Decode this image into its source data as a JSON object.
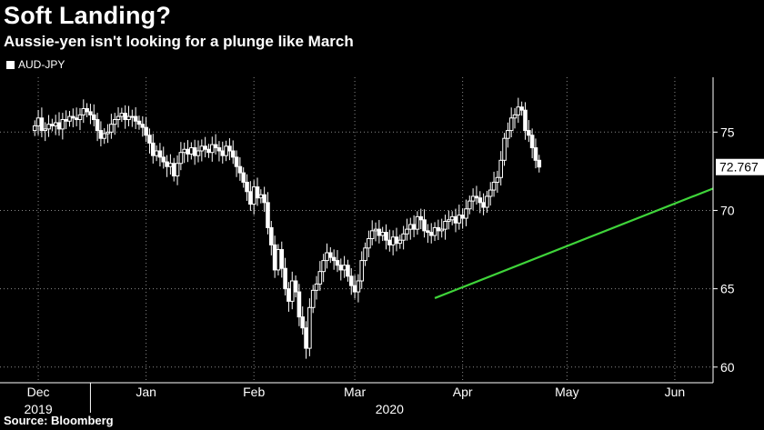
{
  "title": "Soft Landing?",
  "subtitle": "Aussie-yen isn't looking for a plunge like March",
  "source": "Source: Bloomberg",
  "chart_data": {
    "type": "candlestick",
    "title": "Soft Landing?",
    "subtitle": "Aussie-yen isn't looking for a plunge like March",
    "legend": [
      {
        "name": "AUD-JPY",
        "color": "#ffffff",
        "position": "top-left"
      }
    ],
    "y_axis": {
      "side": "right",
      "ylim": [
        59,
        78.5
      ],
      "ticks": [
        60,
        65,
        70,
        75
      ],
      "grid": true
    },
    "x_axis": {
      "ticks": [
        {
          "label": "Dec",
          "value": 1
        },
        {
          "label": "Jan",
          "value": 32
        },
        {
          "label": "Feb",
          "value": 63
        },
        {
          "label": "Mar",
          "value": 92
        },
        {
          "label": "Apr",
          "value": 123
        },
        {
          "label": "May",
          "value": 153
        },
        {
          "label": "Jun",
          "value": 184
        }
      ],
      "years": [
        {
          "label": "2019",
          "value": 1
        },
        {
          "label": "2020",
          "value": 102
        }
      ],
      "xlim": [
        -10,
        195
      ],
      "grid": true
    },
    "last_value": {
      "label": "72.767",
      "value": 72.77
    },
    "trendline": {
      "color": "#3fd43a",
      "points": [
        [
          115,
          64.4
        ],
        [
          195,
          71.4
        ]
      ]
    },
    "closes": [
      75.4,
      75.9,
      75.1,
      75.2,
      75.5,
      75.4,
      75.6,
      75.2,
      75.8,
      75.7,
      76.0,
      75.9,
      75.8,
      76.1,
      76.5,
      76.3,
      76.1,
      75.8,
      75.1,
      74.6,
      74.9,
      75.0,
      75.5,
      75.8,
      76.0,
      76.2,
      75.8,
      76.0,
      76.0,
      75.7,
      75.5,
      75.3,
      74.8,
      74.3,
      73.5,
      73.8,
      73.4,
      73.1,
      72.8,
      73.0,
      72.2,
      73.0,
      73.7,
      73.9,
      73.6,
      74.0,
      73.5,
      73.8,
      74.1,
      73.9,
      73.7,
      74.2,
      74.0,
      73.8,
      73.5,
      74.1,
      73.8,
      73.4,
      72.8,
      72.4,
      71.8,
      71.2,
      70.4,
      71.5,
      70.8,
      71.0,
      70.5,
      68.9,
      67.8,
      66.2,
      67.5,
      66.3,
      65.0,
      64.2,
      65.5,
      64.8,
      63.2,
      62.5,
      61.2,
      63.8,
      64.9,
      65.3,
      66.1,
      66.8,
      67.3,
      67.0,
      66.8,
      66.5,
      66.2,
      66.5,
      65.8,
      65.2,
      64.8,
      65.5,
      66.8,
      67.6,
      68.2,
      68.7,
      68.8,
      68.4,
      68.6,
      68.1,
      67.8,
      68.3,
      67.9,
      68.1,
      68.5,
      68.8,
      69.1,
      68.8,
      69.6,
      69.4,
      68.7,
      68.6,
      68.4,
      68.9,
      68.7,
      68.8,
      69.3,
      69.4,
      69.6,
      69.2,
      69.7,
      69.5,
      70.1,
      70.6,
      70.9,
      70.8,
      70.5,
      70.2,
      70.9,
      71.3,
      71.8,
      72.1,
      73.2,
      74.6,
      75.1,
      75.9,
      76.1,
      76.6,
      76.4,
      75.1,
      74.8,
      74.0,
      73.2,
      72.77
    ]
  }
}
